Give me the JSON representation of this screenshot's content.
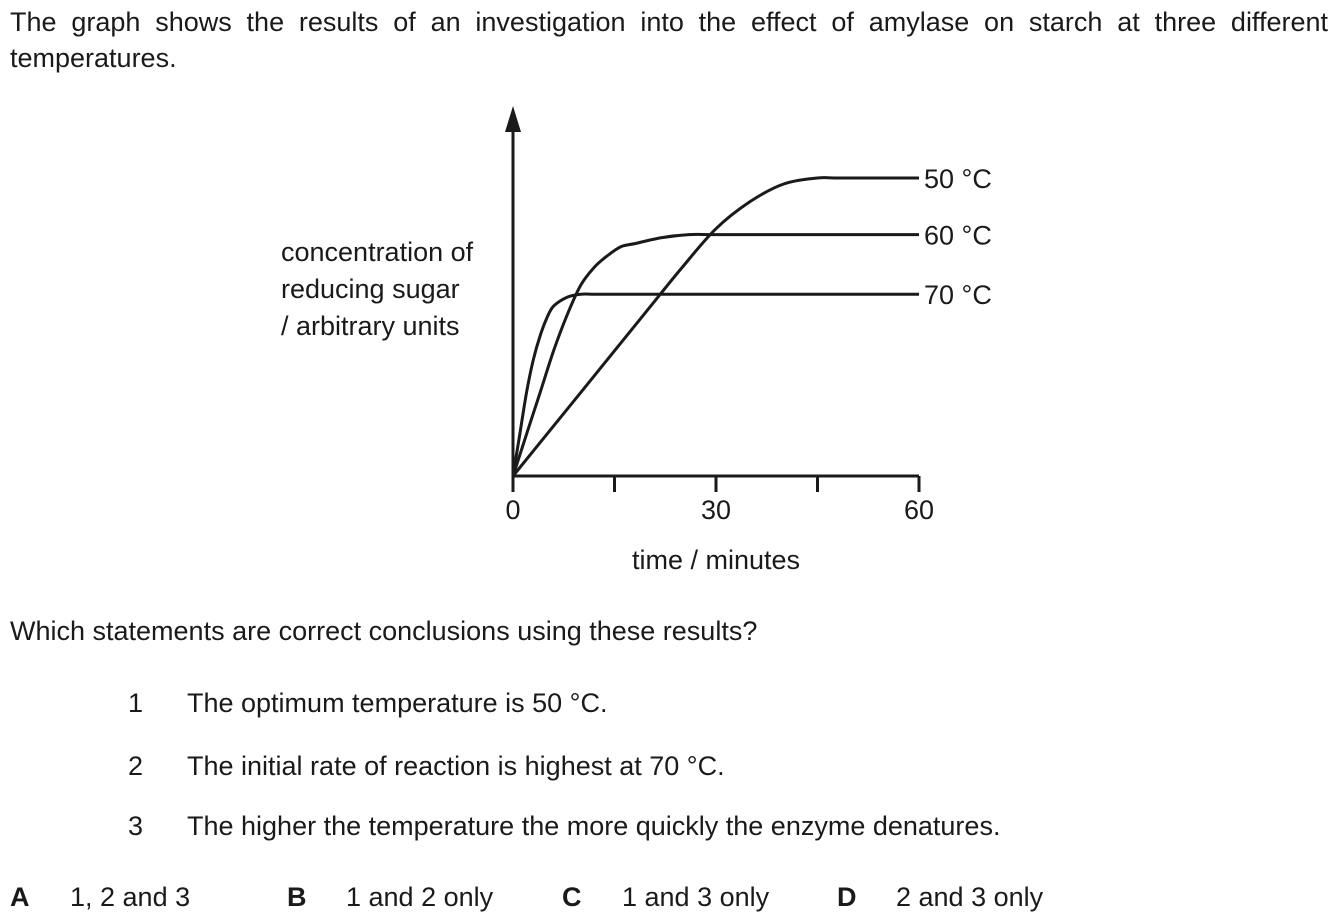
{
  "intro": "The graph shows the results of an investigation into the effect of amylase on starch at three different temperatures.",
  "chart_data": {
    "type": "line",
    "title": "",
    "xlabel": "time / minutes",
    "ylabel": [
      "concentration of",
      "reducing sugar",
      "/ arbitrary units"
    ],
    "xlim": [
      0,
      60
    ],
    "ylim": [
      0,
      100
    ],
    "x_ticks": [
      0,
      15,
      30,
      45,
      60
    ],
    "x_tick_labels": [
      "0",
      "30",
      "60"
    ],
    "x_tick_label_values": [
      0,
      30,
      60
    ],
    "y_ticks": [],
    "grid": false,
    "series": [
      {
        "name": "50 °C",
        "x": [
          0,
          5,
          10,
          15,
          20,
          25,
          30,
          35,
          40,
          45,
          48,
          60
        ],
        "y": [
          0,
          14,
          28,
          42,
          56,
          70,
          83,
          92,
          98,
          100,
          100,
          100
        ]
      },
      {
        "name": "60 °C",
        "x": [
          0,
          2,
          4,
          6,
          8,
          10,
          12,
          14,
          16,
          18,
          22,
          26,
          30,
          40,
          60
        ],
        "y": [
          0,
          14,
          28,
          42,
          54,
          64,
          70,
          74,
          77,
          78,
          80,
          81,
          81,
          81,
          81
        ]
      },
      {
        "name": "70 °C",
        "x": [
          0,
          1,
          2,
          3,
          4,
          5,
          6,
          8,
          10,
          12,
          15,
          20,
          30,
          60
        ],
        "y": [
          0,
          14,
          28,
          39,
          47,
          53,
          57,
          60,
          61,
          61,
          61,
          61,
          61,
          61
        ]
      }
    ]
  },
  "question": "Which statements are correct conclusions using these results?",
  "statements": [
    {
      "num": "1",
      "text": "The optimum temperature is 50 °C."
    },
    {
      "num": "2",
      "text": "The initial rate of reaction is highest at 70 °C."
    },
    {
      "num": "3",
      "text": "The higher the temperature the more quickly the enzyme denatures."
    }
  ],
  "options": [
    {
      "letter": "A",
      "text": "1, 2 and 3"
    },
    {
      "letter": "B",
      "text": "1 and 2 only"
    },
    {
      "letter": "C",
      "text": "1 and 3 only"
    },
    {
      "letter": "D",
      "text": "2 and 3 only"
    }
  ]
}
